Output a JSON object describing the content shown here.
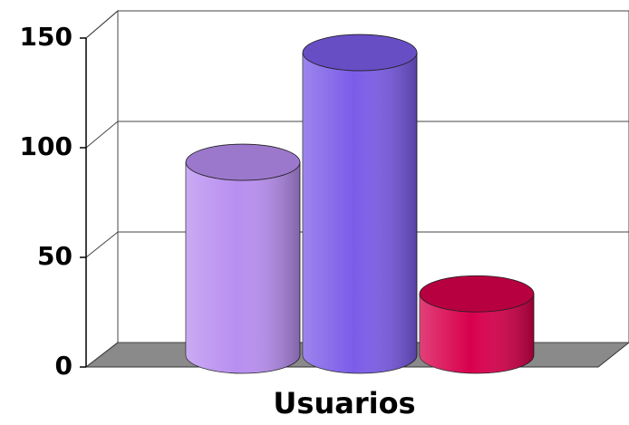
{
  "chart_data": {
    "type": "bar",
    "categories": [
      "Usuarios"
    ],
    "series": [
      {
        "color": "#b88ef0",
        "values": [
          88
        ]
      },
      {
        "color": "#7b5ce8",
        "values": [
          138
        ]
      },
      {
        "color": "#d8004c",
        "values": [
          28
        ]
      }
    ],
    "ylim": [
      0,
      150
    ],
    "yticks": [
      0,
      50,
      100,
      150
    ],
    "grid": true
  }
}
